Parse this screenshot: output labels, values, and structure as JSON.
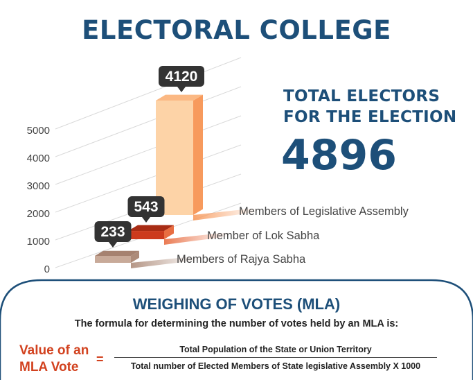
{
  "title": "ELECTORAL COLLEGE",
  "totals": {
    "label_line1": "TOTAL ELECTORS",
    "label_line2": "FOR THE ELECTION",
    "value": "4896"
  },
  "colors": {
    "blue": "#1d4f79",
    "orange_front": "#fdd3a7",
    "orange_side": "#f79a5d",
    "orange_top": "#fbb883",
    "red_front": "#cc3a1d",
    "red_side": "#e86d41",
    "red_top": "#a82c14",
    "brown_front": "#c8aa99",
    "brown_side": "#ad8b79",
    "brown_top": "#a68270",
    "callout": "#333333",
    "axis_text": "#444444",
    "grid": "#d9d9d9",
    "lhs_red": "#d2421f"
  },
  "chart_data": {
    "type": "bar",
    "title": "",
    "ylim": [
      0,
      5000
    ],
    "yticks": [
      "0",
      "1000",
      "2000",
      "3000",
      "4000",
      "5000"
    ],
    "categories": [
      "Members of Legislative Assembly",
      "Member of Lok Sabha",
      "Members of Rajya Sabha"
    ],
    "values": [
      4120,
      543,
      233
    ],
    "value_labels": [
      "4120",
      "543",
      "233"
    ],
    "grid": true
  },
  "weighing": {
    "title": "WEIGHING OF VOTES  (MLA)",
    "intro": "The formula for determining the number of votes held by an MLA is:",
    "lhs_line1": "Value of an",
    "lhs_line2": "MLA Vote",
    "equals": "=",
    "numerator": "Total Population of the State or Union Territory",
    "denominator": "Total number of Elected Members of State legislative Assembly X 1000"
  }
}
